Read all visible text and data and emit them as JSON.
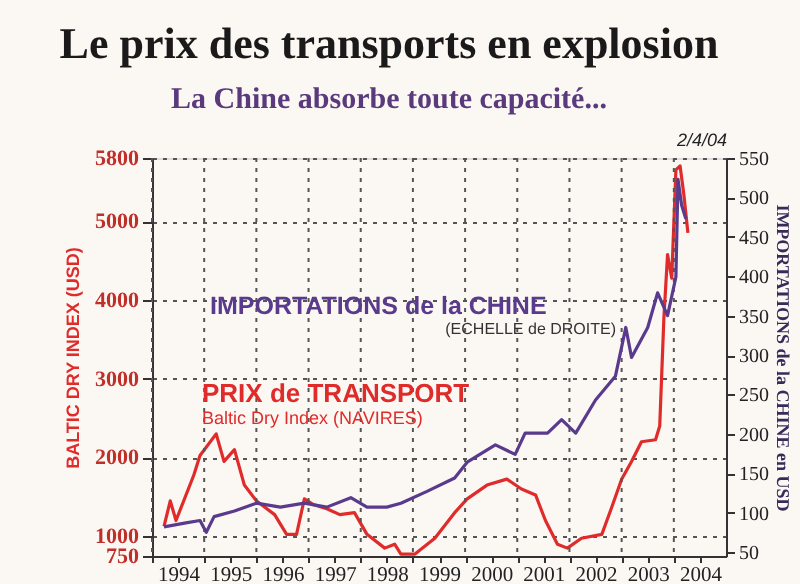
{
  "chart_data": {
    "type": "line",
    "title": "Le prix des transports en explosion",
    "subtitle": "La Chine absorbe toute capacité...",
    "ylabel": "BALTIC DRY INDEX (USD)",
    "y2label": "IMPORTATIONS de la CHINE en USD",
    "xlim": [
      1994,
      2005
    ],
    "xticks": [
      {
        "value": 1994,
        "label": null
      },
      {
        "value": 1994.5,
        "label": "1994"
      },
      {
        "value": 1995,
        "label": null
      },
      {
        "value": 1995.5,
        "label": "1995"
      },
      {
        "value": 1996,
        "label": null
      },
      {
        "value": 1996.5,
        "label": "1996"
      },
      {
        "value": 1997,
        "label": null
      },
      {
        "value": 1997.5,
        "label": "1997"
      },
      {
        "value": 1998,
        "label": null
      },
      {
        "value": 1998.5,
        "label": "1998"
      },
      {
        "value": 1999,
        "label": null
      },
      {
        "value": 1999.5,
        "label": "1999"
      },
      {
        "value": 2000,
        "label": null
      },
      {
        "value": 2000.5,
        "label": "2000"
      },
      {
        "value": 2001,
        "label": null
      },
      {
        "value": 2001.5,
        "label": "2001"
      },
      {
        "value": 2002,
        "label": null
      },
      {
        "value": 2002.5,
        "label": "2002"
      },
      {
        "value": 2003,
        "label": null
      },
      {
        "value": 2003.5,
        "label": "2003"
      },
      {
        "value": 2004,
        "label": null
      },
      {
        "value": 2004.5,
        "label": "2004"
      }
    ],
    "ylim": [
      750,
      5800
    ],
    "yticks": [
      750,
      1000,
      2000,
      3000,
      4000,
      5000,
      5800
    ],
    "y2lim": [
      45,
      550
    ],
    "y2ticks": [
      50,
      100,
      150,
      200,
      250,
      300,
      350,
      400,
      450,
      500,
      550
    ],
    "grid": true,
    "legend": false,
    "annotations": [
      "(ECHELLE de DROITE)",
      "Baltic Dry Index (NAVIRES)",
      "2/4/04"
    ],
    "series": [
      {
        "name": "PRIX de TRANSPORT",
        "color": "#e02b2b",
        "x": [
          1994.23,
          1994.35,
          1994.46,
          1994.8,
          1994.92,
          1995.23,
          1995.38,
          1995.58,
          1995.77,
          1996.0,
          1996.35,
          1996.58,
          1996.77,
          1996.92,
          1997.1,
          1997.35,
          1997.6,
          1997.88,
          1998.12,
          1998.46,
          1998.65,
          1998.77,
          1999.04,
          1999.42,
          1999.8,
          2000.04,
          2000.42,
          2000.8,
          2001.08,
          2001.35,
          2001.54,
          2001.77,
          2001.96,
          2002.23,
          2002.62,
          2002.8,
          2003.0,
          2003.19,
          2003.38,
          2003.65,
          2003.73,
          2003.81,
          2003.88,
          2003.96,
          2004.04,
          2004.12,
          2004.19,
          2004.27
        ],
        "values": [
          1125,
          1450,
          1200,
          1775,
          2025,
          2300,
          1950,
          2100,
          1650,
          1450,
          1275,
          1025,
          1025,
          1475,
          1400,
          1350,
          1275,
          1300,
          1025,
          850,
          900,
          775,
          775,
          975,
          1300,
          1475,
          1650,
          1725,
          1600,
          1525,
          1200,
          900,
          850,
          975,
          1025,
          1350,
          1725,
          1950,
          2200,
          2225,
          2400,
          3775,
          4575,
          4275,
          5650,
          5700,
          5350,
          4850
        ]
      },
      {
        "name": "IMPORTATIONS de la CHINE",
        "color": "#5a3a8c",
        "axis": "y2",
        "x": [
          1994.23,
          1994.65,
          1994.92,
          1995.04,
          1995.19,
          1995.58,
          1996.0,
          1996.46,
          1996.92,
          1997.35,
          1997.81,
          1998.12,
          1998.5,
          1998.77,
          1999.27,
          1999.8,
          2000.04,
          2000.58,
          2000.96,
          2001.15,
          2001.58,
          2001.85,
          2002.12,
          2002.5,
          2002.88,
          2003.08,
          2003.19,
          2003.5,
          2003.69,
          2003.88,
          2004.04,
          2004.08,
          2004.15,
          2004.23
        ],
        "values": [
          82,
          87,
          90,
          75,
          95,
          102,
          112,
          107,
          112,
          107,
          119,
          107,
          107,
          112,
          127,
          144,
          164,
          186,
          174,
          201,
          201,
          218,
          201,
          243,
          273,
          335,
          297,
          335,
          379,
          350,
          399,
          523,
          490,
          473
        ]
      }
    ]
  }
}
